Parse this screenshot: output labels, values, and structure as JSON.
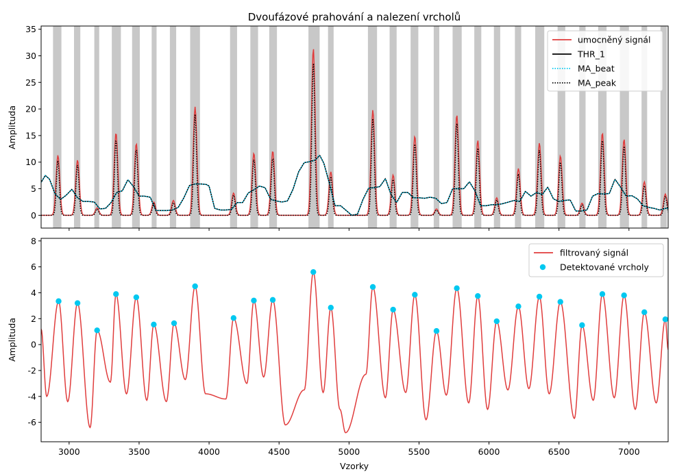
{
  "chart_data": [
    {
      "type": "line",
      "title": "Dvoufázové prahování a nalezení vrcholů",
      "ylabel": "Amplituda",
      "xlabel": "",
      "xlim": [
        2800,
        7280
      ],
      "ylim": [
        -2.4,
        35.6
      ],
      "yticks": [
        0,
        5,
        10,
        15,
        20,
        25,
        30,
        35
      ],
      "xticks": [
        3000,
        3500,
        4000,
        4500,
        5000,
        5500,
        6000,
        6500,
        7000
      ],
      "show_xtick_labels": false,
      "legend_position": "top-right",
      "legend": [
        {
          "label": "umocněný signál",
          "color": "#e03c3c",
          "style": "solid"
        },
        {
          "label": "THR_1",
          "color": "#000000",
          "style": "solid"
        },
        {
          "label": "MA_beat",
          "color": "#00c8f0",
          "style": "dotted"
        },
        {
          "label": "MA_peak",
          "color": "#000000",
          "style": "dotted"
        }
      ],
      "shaded_regions": [
        [
          2885,
          2945
        ],
        [
          3035,
          3080
        ],
        [
          3180,
          3215
        ],
        [
          3305,
          3370
        ],
        [
          3450,
          3505
        ],
        [
          3590,
          3625
        ],
        [
          3720,
          3765
        ],
        [
          3865,
          3935
        ],
        [
          4150,
          4200
        ],
        [
          4295,
          4350
        ],
        [
          4430,
          4485
        ],
        [
          4710,
          4790
        ],
        [
          4850,
          4890
        ],
        [
          5135,
          5200
        ],
        [
          5290,
          5340
        ],
        [
          5440,
          5495
        ],
        [
          5605,
          5645
        ],
        [
          5740,
          5805
        ],
        [
          5895,
          5945
        ],
        [
          6035,
          6080
        ],
        [
          6185,
          6230
        ],
        [
          6330,
          6395
        ],
        [
          6490,
          6545
        ],
        [
          6645,
          6690
        ],
        [
          6780,
          6840
        ],
        [
          6935,
          7000
        ],
        [
          7090,
          7130
        ],
        [
          7225,
          7270
        ]
      ],
      "peaks": [
        {
          "x": 2920,
          "power": 11.3,
          "ma_peak": 10.3
        },
        {
          "x": 3060,
          "power": 10.4,
          "ma_peak": 9.5
        },
        {
          "x": 3200,
          "power": 1.4,
          "ma_peak": 1.2
        },
        {
          "x": 3335,
          "power": 15.5,
          "ma_peak": 14.3
        },
        {
          "x": 3480,
          "power": 13.5,
          "ma_peak": 12.5
        },
        {
          "x": 3605,
          "power": 2.5,
          "ma_peak": 2.2
        },
        {
          "x": 3745,
          "power": 2.8,
          "ma_peak": 2.4
        },
        {
          "x": 3900,
          "power": 20.4,
          "ma_peak": 19.0
        },
        {
          "x": 4175,
          "power": 4.2,
          "ma_peak": 3.8
        },
        {
          "x": 4320,
          "power": 11.7,
          "ma_peak": 10.6
        },
        {
          "x": 4455,
          "power": 12.1,
          "ma_peak": 10.9
        },
        {
          "x": 4745,
          "power": 31.4,
          "ma_peak": 28.8
        },
        {
          "x": 4870,
          "power": 8.2,
          "ma_peak": 7.3
        },
        {
          "x": 5170,
          "power": 19.8,
          "ma_peak": 18.2
        },
        {
          "x": 5315,
          "power": 7.6,
          "ma_peak": 6.8
        },
        {
          "x": 5470,
          "power": 14.9,
          "ma_peak": 13.6
        },
        {
          "x": 5625,
          "power": 1.2,
          "ma_peak": 1.0
        },
        {
          "x": 5770,
          "power": 18.9,
          "ma_peak": 17.5
        },
        {
          "x": 5920,
          "power": 14.1,
          "ma_peak": 12.7
        },
        {
          "x": 6055,
          "power": 3.3,
          "ma_peak": 2.9
        },
        {
          "x": 6210,
          "power": 8.8,
          "ma_peak": 7.8
        },
        {
          "x": 6360,
          "power": 13.6,
          "ma_peak": 12.3
        },
        {
          "x": 6510,
          "power": 11.2,
          "ma_peak": 10.1
        },
        {
          "x": 6665,
          "power": 2.3,
          "ma_peak": 2.0
        },
        {
          "x": 6810,
          "power": 15.5,
          "ma_peak": 14.3
        },
        {
          "x": 6965,
          "power": 14.3,
          "ma_peak": 13.1
        },
        {
          "x": 7110,
          "power": 6.3,
          "ma_peak": 5.6
        },
        {
          "x": 7260,
          "power": 4.0,
          "ma_peak": 3.6
        }
      ],
      "ma_beat": {
        "x": [
          2800,
          2830,
          2860,
          2900,
          2940,
          2980,
          3020,
          3060,
          3100,
          3140,
          3180,
          3220,
          3260,
          3300,
          3340,
          3380,
          3420,
          3460,
          3500,
          3540,
          3580,
          3620,
          3660,
          3700,
          3740,
          3780,
          3820,
          3860,
          3900,
          3940,
          3980,
          4000,
          4040,
          4080,
          4120,
          4160,
          4200,
          4240,
          4280,
          4320,
          4360,
          4400,
          4440,
          4480,
          4520,
          4560,
          4600,
          4640,
          4680,
          4720,
          4760,
          4790,
          4820,
          4860,
          4900,
          4940,
          4980,
          5020,
          5060,
          5100,
          5140,
          5180,
          5220,
          5260,
          5300,
          5340,
          5380,
          5420,
          5460,
          5500,
          5540,
          5580,
          5620,
          5660,
          5700,
          5740,
          5780,
          5820,
          5860,
          5900,
          5940,
          5980,
          6020,
          6060,
          6100,
          6140,
          6180,
          6220,
          6260,
          6300,
          6340,
          6380,
          6420,
          6460,
          6500,
          6540,
          6580,
          6620,
          6660,
          6700,
          6740,
          6780,
          6820,
          6860,
          6900,
          6940,
          6980,
          7020,
          7060,
          7100,
          7140,
          7180,
          7220,
          7260,
          7280
        ],
        "y": [
          6.2,
          7.5,
          6.8,
          4.0,
          3.0,
          3.8,
          4.9,
          3.3,
          2.6,
          2.6,
          2.5,
          1.2,
          1.3,
          2.4,
          4.3,
          4.6,
          6.7,
          5.4,
          3.6,
          3.6,
          3.4,
          0.9,
          0.9,
          0.9,
          1.0,
          1.5,
          3.3,
          5.6,
          5.9,
          5.9,
          5.8,
          5.5,
          1.3,
          1.0,
          1.0,
          1.1,
          2.4,
          2.4,
          4.2,
          4.8,
          5.5,
          5.2,
          3.0,
          2.7,
          2.5,
          2.7,
          4.9,
          8.2,
          9.9,
          10.1,
          10.4,
          11.3,
          9.8,
          6.0,
          1.8,
          1.8,
          0.9,
          0.0,
          0.2,
          3.0,
          5.1,
          5.2,
          5.4,
          6.9,
          3.9,
          2.4,
          4.3,
          4.3,
          3.3,
          3.3,
          3.2,
          3.4,
          3.2,
          2.2,
          2.4,
          5.0,
          5.0,
          5.0,
          6.3,
          4.6,
          1.8,
          1.8,
          2.0,
          2.0,
          2.2,
          2.5,
          2.8,
          2.6,
          4.5,
          3.6,
          4.3,
          3.9,
          5.3,
          3.1,
          2.6,
          2.8,
          2.9,
          0.8,
          0.8,
          1.0,
          3.6,
          4.1,
          4.0,
          4.1,
          6.8,
          5.3,
          3.6,
          3.7,
          3.1,
          1.8,
          1.5,
          1.3,
          1.0,
          1.3,
          1.3
        ]
      }
    },
    {
      "type": "line",
      "xlabel": "Vzorky",
      "ylabel": "Amplituda",
      "xlim": [
        2800,
        7280
      ],
      "ylim": [
        -7.5,
        8.2
      ],
      "yticks": [
        -6,
        -4,
        -2,
        0,
        2,
        4,
        6,
        8
      ],
      "xticks": [
        3000,
        3500,
        4000,
        4500,
        5000,
        5500,
        6000,
        6500,
        7000
      ],
      "xtick_labels": [
        "3000",
        "3500",
        "4000",
        "4500",
        "5000",
        "5500",
        "6000",
        "6500",
        "7000"
      ],
      "legend_position": "top-right",
      "legend": [
        {
          "label": "filtrovaný signál",
          "color": "#e03c3c",
          "style": "solid"
        },
        {
          "label": "Detektované vrcholy",
          "color": "#00c8f0",
          "style": "marker"
        }
      ],
      "detected_peaks": [
        {
          "x": 2925,
          "y": 3.35
        },
        {
          "x": 3060,
          "y": 3.2
        },
        {
          "x": 3200,
          "y": 1.1
        },
        {
          "x": 3335,
          "y": 3.9
        },
        {
          "x": 3480,
          "y": 3.65
        },
        {
          "x": 3605,
          "y": 1.55
        },
        {
          "x": 3750,
          "y": 1.65
        },
        {
          "x": 3900,
          "y": 4.5
        },
        {
          "x": 4175,
          "y": 2.05
        },
        {
          "x": 4320,
          "y": 3.4
        },
        {
          "x": 4455,
          "y": 3.45
        },
        {
          "x": 4745,
          "y": 5.6
        },
        {
          "x": 4870,
          "y": 2.85
        },
        {
          "x": 5170,
          "y": 4.45
        },
        {
          "x": 5315,
          "y": 2.7
        },
        {
          "x": 5470,
          "y": 3.85
        },
        {
          "x": 5625,
          "y": 1.05
        },
        {
          "x": 5770,
          "y": 4.35
        },
        {
          "x": 5920,
          "y": 3.75
        },
        {
          "x": 6055,
          "y": 1.8
        },
        {
          "x": 6210,
          "y": 2.95
        },
        {
          "x": 6360,
          "y": 3.7
        },
        {
          "x": 6510,
          "y": 3.3
        },
        {
          "x": 6665,
          "y": 1.5
        },
        {
          "x": 6810,
          "y": 3.9
        },
        {
          "x": 6965,
          "y": 3.8
        },
        {
          "x": 7110,
          "y": 2.5
        },
        {
          "x": 7260,
          "y": 1.95
        }
      ],
      "troughs": [
        {
          "x": 2800,
          "y": 1.2
        },
        {
          "x": 2840,
          "y": -4.0
        },
        {
          "x": 2990,
          "y": -4.4
        },
        {
          "x": 3150,
          "y": -6.4
        },
        {
          "x": 3295,
          "y": -2.9
        },
        {
          "x": 3410,
          "y": -3.8
        },
        {
          "x": 3555,
          "y": -4.3
        },
        {
          "x": 3695,
          "y": -4.4
        },
        {
          "x": 3830,
          "y": -2.7
        },
        {
          "x": 3975,
          "y": -3.8
        },
        {
          "x": 4120,
          "y": -4.2
        },
        {
          "x": 4270,
          "y": -3.0
        },
        {
          "x": 4390,
          "y": -2.5
        },
        {
          "x": 4545,
          "y": -6.2
        },
        {
          "x": 4680,
          "y": -3.5
        },
        {
          "x": 4815,
          "y": -3.7
        },
        {
          "x": 4935,
          "y": -5.0
        },
        {
          "x": 4975,
          "y": -6.8
        },
        {
          "x": 5120,
          "y": -2.3
        },
        {
          "x": 5260,
          "y": -4.1
        },
        {
          "x": 5405,
          "y": -3.7
        },
        {
          "x": 5550,
          "y": -5.8
        },
        {
          "x": 5695,
          "y": -3.9
        },
        {
          "x": 5855,
          "y": -4.5
        },
        {
          "x": 5990,
          "y": -5.0
        },
        {
          "x": 6135,
          "y": -3.5
        },
        {
          "x": 6285,
          "y": -3.4
        },
        {
          "x": 6430,
          "y": -3.8
        },
        {
          "x": 6610,
          "y": -5.7
        },
        {
          "x": 6745,
          "y": -4.3
        },
        {
          "x": 6895,
          "y": -4.1
        },
        {
          "x": 7045,
          "y": -5.0
        },
        {
          "x": 7195,
          "y": -4.5
        },
        {
          "x": 7280,
          "y": -0.4
        }
      ]
    }
  ]
}
